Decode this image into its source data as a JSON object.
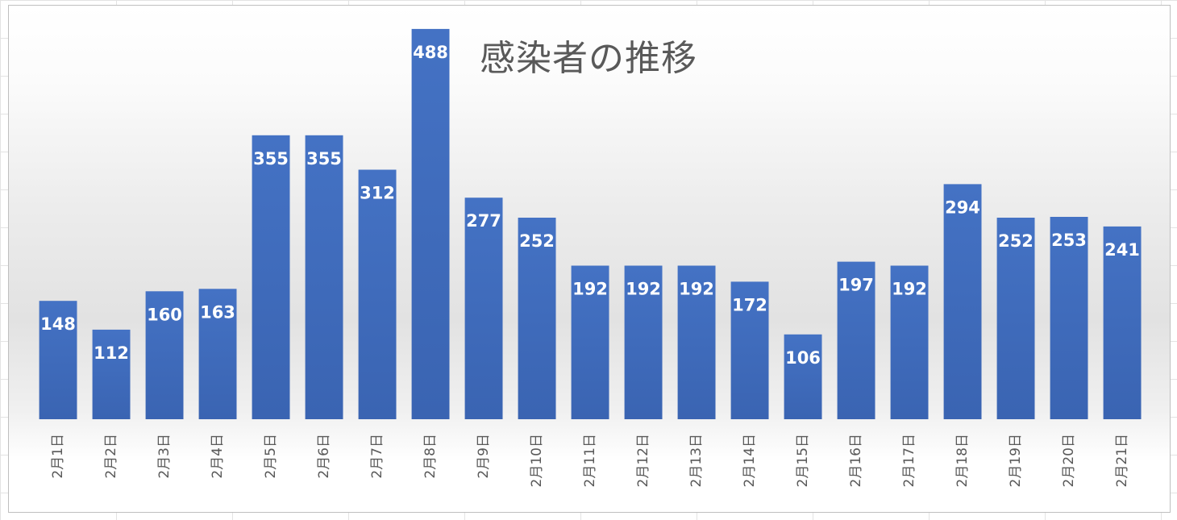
{
  "chart_data": {
    "type": "bar",
    "title": "感染者の推移",
    "xlabel": "",
    "ylabel": "",
    "ylim": [
      0,
      500
    ],
    "grid": false,
    "legend": "none",
    "data_labels": true,
    "bar_color": "#4472c4",
    "categories": [
      "2月1日",
      "2月2日",
      "2月3日",
      "2月4日",
      "2月5日",
      "2月6日",
      "2月7日",
      "2月8日",
      "2月9日",
      "2月10日",
      "2月11日",
      "2月12日",
      "2月13日",
      "2月14日",
      "2月15日",
      "2月16日",
      "2月17日",
      "2月18日",
      "2月19日",
      "2月20日",
      "2月21日"
    ],
    "values": [
      148,
      112,
      160,
      163,
      355,
      355,
      312,
      488,
      277,
      252,
      192,
      192,
      192,
      172,
      106,
      197,
      192,
      294,
      252,
      253,
      241
    ]
  }
}
